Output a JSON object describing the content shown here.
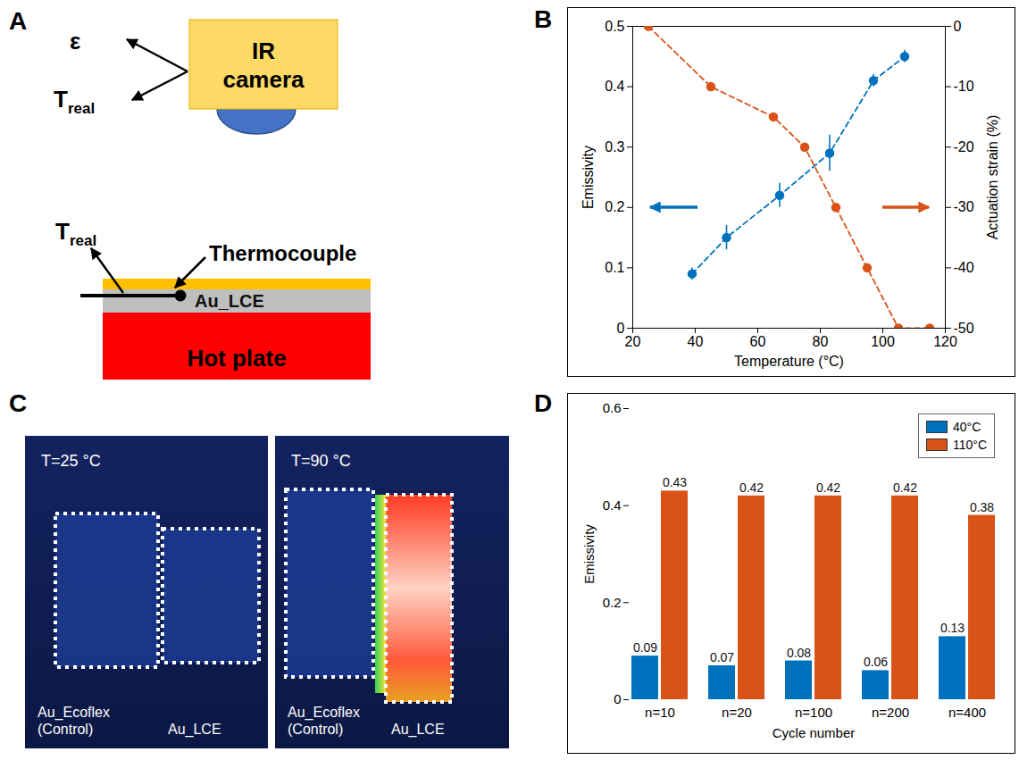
{
  "panel_labels": [
    "A",
    "B",
    "C",
    "D"
  ],
  "diagram": {
    "camera": "IR camera",
    "camera_outputs": [
      {
        "text": "ε"
      },
      {
        "text": "T",
        "subscript": "real"
      }
    ],
    "sample_output": {
      "text": "T",
      "subscript": "real"
    },
    "thermocouple": "Thermocouple",
    "sample": "Au_LCE",
    "heater": "Hot plate"
  },
  "images": [
    {
      "label": "T=25 °C",
      "samples": [
        "Au_Ecoflex (Control)",
        "Au_LCE"
      ]
    },
    {
      "label": "T=90 °C",
      "samples": [
        "Au_Ecoflex (Control)",
        "Au_LCE"
      ]
    }
  ],
  "chart_data": [
    {
      "type": "line",
      "x_label": "Temperature (°C)",
      "y_label": "Emissivity",
      "y2_label": "Actuation strain (%)",
      "xlim": [
        20,
        120
      ],
      "xticks": [
        20,
        40,
        60,
        80,
        100,
        120
      ],
      "ylim": [
        0,
        0.5
      ],
      "yticks": [
        0,
        0.1,
        0.2,
        0.3,
        0.4,
        0.5
      ],
      "y2lim": [
        -50,
        0
      ],
      "y2ticks": [
        -50,
        -40,
        -30,
        -20,
        -10,
        0
      ],
      "grid": false,
      "line_style": "dashed",
      "marker": "circle",
      "series": [
        {
          "color": "#0072BD",
          "axis": "y",
          "x": [
            39,
            50,
            67,
            83,
            97,
            107
          ],
          "values": [
            0.09,
            0.15,
            0.22,
            0.29,
            0.41,
            0.45
          ],
          "errors": [
            0.01,
            0.02,
            0.02,
            0.03,
            0.01,
            0.01
          ]
        },
        {
          "color": "#D95319",
          "axis": "y2",
          "x": [
            25,
            45,
            65,
            75,
            85,
            95,
            105,
            115
          ],
          "values": [
            0,
            -10,
            -15,
            -20,
            -30,
            -40,
            -50,
            -50
          ]
        }
      ]
    },
    {
      "type": "bar",
      "x_label": "Cycle number",
      "y_label": "Emissivity",
      "categories": [
        "n=10",
        "n=20",
        "n=100",
        "n=200",
        "n=400"
      ],
      "ylim": [
        0,
        0.6
      ],
      "yticks": [
        0,
        0.2,
        0.4,
        0.6
      ],
      "grid": false,
      "legend": "upper right",
      "data_labels": true,
      "series": [
        {
          "name": "40°C",
          "color": "#0072BD",
          "values": [
            0.09,
            0.07,
            0.08,
            0.06,
            0.13
          ]
        },
        {
          "name": "110°C",
          "color": "#D95319",
          "values": [
            0.43,
            0.42,
            0.42,
            0.42,
            0.38
          ]
        }
      ]
    }
  ]
}
